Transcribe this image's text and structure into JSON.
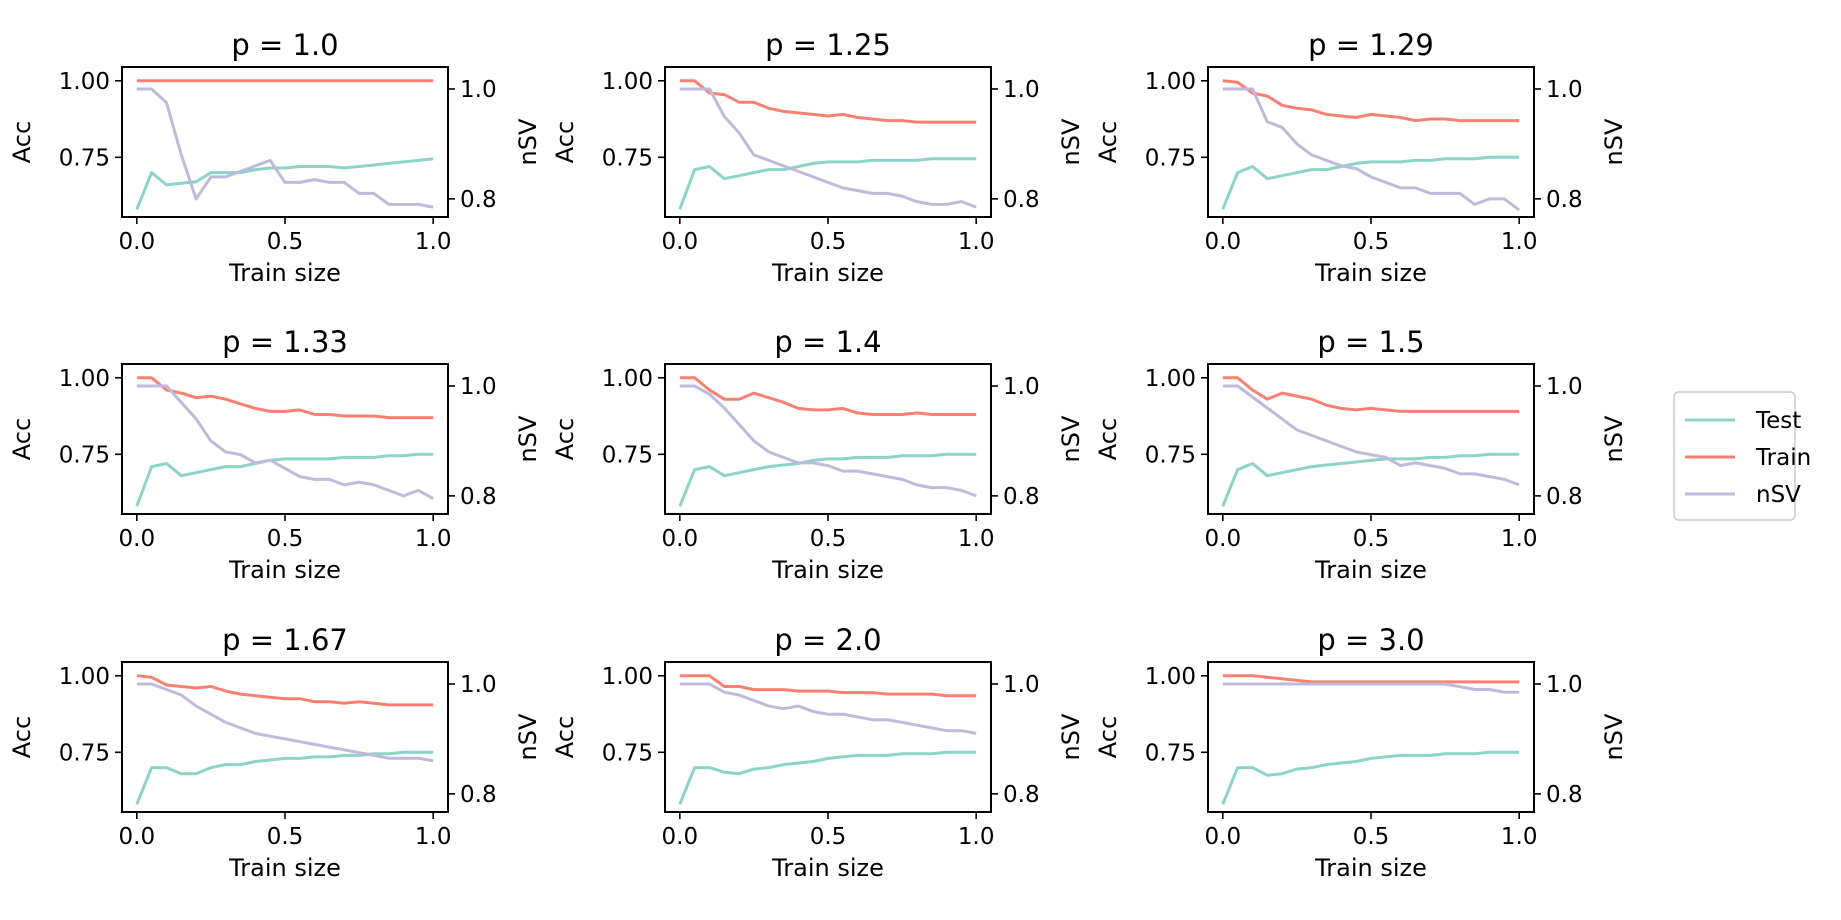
{
  "chart_data": {
    "type": "line",
    "layout": "3x3 grid of dual-axis line charts",
    "colors": {
      "Test": "#8dd3c7",
      "Train": "#fb8072",
      "nSV": "#bebada"
    },
    "legend": {
      "placement": "center-right",
      "entries": [
        "Test",
        "Train",
        "nSV"
      ]
    },
    "x": [
      0.0,
      0.05,
      0.1,
      0.15,
      0.2,
      0.25,
      0.3,
      0.35,
      0.4,
      0.45,
      0.5,
      0.55,
      0.6,
      0.65,
      0.7,
      0.75,
      0.8,
      0.85,
      0.9,
      0.95,
      1.0
    ],
    "xlabel": "Train size",
    "ylabel_left": "Acc",
    "ylabel_right": "nSV",
    "xlim": [
      -0.05,
      1.05
    ],
    "ylim_left": [
      0.555,
      1.045
    ],
    "ylim_right": [
      0.767,
      1.04
    ],
    "xticks": [
      "0.0",
      "0.5",
      "1.0"
    ],
    "yticks_left": [
      "1.00",
      "0.75"
    ],
    "yticks_right": [
      "1.0",
      "0.8"
    ],
    "panels": [
      {
        "title": "p = 1.0",
        "series": [
          {
            "name": "Test",
            "axis": "left",
            "values": [
              0.58,
              0.7,
              0.66,
              0.665,
              0.67,
              0.7,
              0.7,
              0.7,
              0.71,
              0.715,
              0.715,
              0.72,
              0.72,
              0.72,
              0.715,
              0.72,
              0.725,
              0.73,
              0.735,
              0.74,
              0.745
            ]
          },
          {
            "name": "Train",
            "axis": "left",
            "values": [
              1.0,
              1.0,
              1.0,
              1.0,
              1.0,
              1.0,
              1.0,
              1.0,
              1.0,
              1.0,
              1.0,
              1.0,
              1.0,
              1.0,
              1.0,
              1.0,
              1.0,
              1.0,
              1.0,
              1.0,
              1.0
            ]
          },
          {
            "name": "nSV",
            "axis": "right",
            "values": [
              1.0,
              1.0,
              0.975,
              0.88,
              0.8,
              0.84,
              0.84,
              0.85,
              0.86,
              0.87,
              0.83,
              0.83,
              0.835,
              0.83,
              0.83,
              0.81,
              0.81,
              0.79,
              0.79,
              0.79,
              0.785
            ]
          }
        ]
      },
      {
        "title": "p = 1.25",
        "series": [
          {
            "name": "Test",
            "axis": "left",
            "values": [
              0.58,
              0.71,
              0.72,
              0.68,
              0.69,
              0.7,
              0.71,
              0.71,
              0.72,
              0.73,
              0.735,
              0.735,
              0.735,
              0.74,
              0.74,
              0.74,
              0.74,
              0.745,
              0.745,
              0.745,
              0.745
            ]
          },
          {
            "name": "Train",
            "axis": "left",
            "values": [
              1.0,
              1.0,
              0.96,
              0.955,
              0.93,
              0.93,
              0.91,
              0.9,
              0.895,
              0.89,
              0.885,
              0.89,
              0.88,
              0.875,
              0.87,
              0.87,
              0.865,
              0.865,
              0.865,
              0.865,
              0.865
            ]
          },
          {
            "name": "nSV",
            "axis": "right",
            "values": [
              1.0,
              1.0,
              1.0,
              0.95,
              0.92,
              0.88,
              0.87,
              0.86,
              0.85,
              0.84,
              0.83,
              0.82,
              0.815,
              0.81,
              0.81,
              0.805,
              0.795,
              0.79,
              0.79,
              0.795,
              0.785
            ]
          }
        ]
      },
      {
        "title": "p = 1.29",
        "series": [
          {
            "name": "Test",
            "axis": "left",
            "values": [
              0.58,
              0.7,
              0.72,
              0.68,
              0.69,
              0.7,
              0.71,
              0.71,
              0.72,
              0.73,
              0.735,
              0.735,
              0.735,
              0.74,
              0.74,
              0.745,
              0.745,
              0.745,
              0.75,
              0.75,
              0.75
            ]
          },
          {
            "name": "Train",
            "axis": "left",
            "values": [
              1.0,
              0.995,
              0.96,
              0.95,
              0.92,
              0.91,
              0.905,
              0.89,
              0.885,
              0.88,
              0.89,
              0.885,
              0.88,
              0.87,
              0.875,
              0.875,
              0.87,
              0.87,
              0.87,
              0.87,
              0.87
            ]
          },
          {
            "name": "nSV",
            "axis": "right",
            "values": [
              1.0,
              1.0,
              1.0,
              0.94,
              0.93,
              0.9,
              0.88,
              0.87,
              0.86,
              0.855,
              0.84,
              0.83,
              0.82,
              0.82,
              0.81,
              0.81,
              0.81,
              0.79,
              0.8,
              0.8,
              0.78
            ]
          }
        ]
      },
      {
        "title": "p = 1.33",
        "series": [
          {
            "name": "Test",
            "axis": "left",
            "values": [
              0.58,
              0.71,
              0.72,
              0.68,
              0.69,
              0.7,
              0.71,
              0.71,
              0.72,
              0.73,
              0.735,
              0.735,
              0.735,
              0.735,
              0.74,
              0.74,
              0.74,
              0.745,
              0.745,
              0.75,
              0.75
            ]
          },
          {
            "name": "Train",
            "axis": "left",
            "values": [
              1.0,
              1.0,
              0.96,
              0.95,
              0.935,
              0.94,
              0.93,
              0.915,
              0.9,
              0.89,
              0.89,
              0.895,
              0.88,
              0.88,
              0.875,
              0.875,
              0.875,
              0.87,
              0.87,
              0.87,
              0.87
            ]
          },
          {
            "name": "nSV",
            "axis": "right",
            "values": [
              1.0,
              1.0,
              1.0,
              0.97,
              0.94,
              0.9,
              0.88,
              0.875,
              0.86,
              0.865,
              0.85,
              0.835,
              0.83,
              0.83,
              0.82,
              0.825,
              0.82,
              0.81,
              0.8,
              0.81,
              0.795
            ]
          }
        ]
      },
      {
        "title": "p = 1.4",
        "series": [
          {
            "name": "Test",
            "axis": "left",
            "values": [
              0.58,
              0.7,
              0.71,
              0.68,
              0.69,
              0.7,
              0.71,
              0.715,
              0.72,
              0.73,
              0.735,
              0.735,
              0.74,
              0.74,
              0.74,
              0.745,
              0.745,
              0.745,
              0.75,
              0.75,
              0.75
            ]
          },
          {
            "name": "Train",
            "axis": "left",
            "values": [
              1.0,
              1.0,
              0.96,
              0.93,
              0.93,
              0.95,
              0.935,
              0.92,
              0.9,
              0.895,
              0.895,
              0.9,
              0.885,
              0.88,
              0.88,
              0.88,
              0.885,
              0.88,
              0.88,
              0.88,
              0.88
            ]
          },
          {
            "name": "nSV",
            "axis": "right",
            "values": [
              1.0,
              1.0,
              0.985,
              0.96,
              0.93,
              0.9,
              0.88,
              0.87,
              0.86,
              0.86,
              0.855,
              0.845,
              0.845,
              0.84,
              0.835,
              0.83,
              0.82,
              0.815,
              0.815,
              0.81,
              0.8
            ]
          }
        ]
      },
      {
        "title": "p = 1.5",
        "series": [
          {
            "name": "Test",
            "axis": "left",
            "values": [
              0.58,
              0.7,
              0.72,
              0.68,
              0.69,
              0.7,
              0.71,
              0.715,
              0.72,
              0.725,
              0.73,
              0.735,
              0.735,
              0.735,
              0.74,
              0.74,
              0.745,
              0.745,
              0.75,
              0.75,
              0.75
            ]
          },
          {
            "name": "Train",
            "axis": "left",
            "values": [
              1.0,
              1.0,
              0.96,
              0.93,
              0.95,
              0.94,
              0.93,
              0.91,
              0.9,
              0.895,
              0.9,
              0.895,
              0.89,
              0.89,
              0.89,
              0.89,
              0.89,
              0.89,
              0.89,
              0.89,
              0.89
            ]
          },
          {
            "name": "nSV",
            "axis": "right",
            "values": [
              1.0,
              1.0,
              0.98,
              0.96,
              0.94,
              0.92,
              0.91,
              0.9,
              0.89,
              0.88,
              0.875,
              0.87,
              0.855,
              0.86,
              0.855,
              0.85,
              0.84,
              0.84,
              0.835,
              0.83,
              0.82
            ]
          }
        ]
      },
      {
        "title": "p = 1.67",
        "series": [
          {
            "name": "Test",
            "axis": "left",
            "values": [
              0.58,
              0.7,
              0.7,
              0.68,
              0.68,
              0.7,
              0.71,
              0.71,
              0.72,
              0.725,
              0.73,
              0.73,
              0.735,
              0.735,
              0.74,
              0.74,
              0.745,
              0.745,
              0.75,
              0.75,
              0.75
            ]
          },
          {
            "name": "Train",
            "axis": "left",
            "values": [
              1.0,
              0.995,
              0.97,
              0.965,
              0.96,
              0.965,
              0.95,
              0.94,
              0.935,
              0.93,
              0.925,
              0.925,
              0.915,
              0.915,
              0.91,
              0.915,
              0.91,
              0.905,
              0.905,
              0.905,
              0.905
            ]
          },
          {
            "name": "nSV",
            "axis": "right",
            "values": [
              1.0,
              1.0,
              0.99,
              0.98,
              0.96,
              0.945,
              0.93,
              0.92,
              0.91,
              0.905,
              0.9,
              0.895,
              0.89,
              0.885,
              0.88,
              0.875,
              0.87,
              0.865,
              0.865,
              0.865,
              0.86
            ]
          }
        ]
      },
      {
        "title": "p = 2.0",
        "series": [
          {
            "name": "Test",
            "axis": "left",
            "values": [
              0.58,
              0.7,
              0.7,
              0.685,
              0.68,
              0.695,
              0.7,
              0.71,
              0.715,
              0.72,
              0.73,
              0.735,
              0.74,
              0.74,
              0.74,
              0.745,
              0.745,
              0.745,
              0.75,
              0.75,
              0.75
            ]
          },
          {
            "name": "Train",
            "axis": "left",
            "values": [
              1.0,
              1.0,
              1.0,
              0.965,
              0.965,
              0.955,
              0.955,
              0.955,
              0.95,
              0.95,
              0.95,
              0.945,
              0.945,
              0.945,
              0.94,
              0.94,
              0.94,
              0.94,
              0.935,
              0.935,
              0.935
            ]
          },
          {
            "name": "nSV",
            "axis": "right",
            "values": [
              1.0,
              1.0,
              1.0,
              0.985,
              0.98,
              0.97,
              0.96,
              0.955,
              0.96,
              0.95,
              0.945,
              0.945,
              0.94,
              0.935,
              0.935,
              0.93,
              0.925,
              0.92,
              0.915,
              0.915,
              0.91
            ]
          }
        ]
      },
      {
        "title": "p = 3.0",
        "series": [
          {
            "name": "Test",
            "axis": "left",
            "values": [
              0.58,
              0.7,
              0.7,
              0.675,
              0.68,
              0.695,
              0.7,
              0.71,
              0.715,
              0.72,
              0.73,
              0.735,
              0.74,
              0.74,
              0.74,
              0.745,
              0.745,
              0.745,
              0.75,
              0.75,
              0.75
            ]
          },
          {
            "name": "Train",
            "axis": "left",
            "values": [
              1.0,
              1.0,
              1.0,
              0.995,
              0.99,
              0.985,
              0.98,
              0.98,
              0.98,
              0.98,
              0.98,
              0.98,
              0.98,
              0.98,
              0.98,
              0.98,
              0.98,
              0.98,
              0.98,
              0.98,
              0.98
            ]
          },
          {
            "name": "nSV",
            "axis": "right",
            "values": [
              1.0,
              1.0,
              1.0,
              1.0,
              1.0,
              1.0,
              1.0,
              1.0,
              1.0,
              1.0,
              1.0,
              1.0,
              1.0,
              1.0,
              1.0,
              1.0,
              0.995,
              0.99,
              0.99,
              0.985,
              0.985
            ]
          }
        ]
      }
    ]
  }
}
